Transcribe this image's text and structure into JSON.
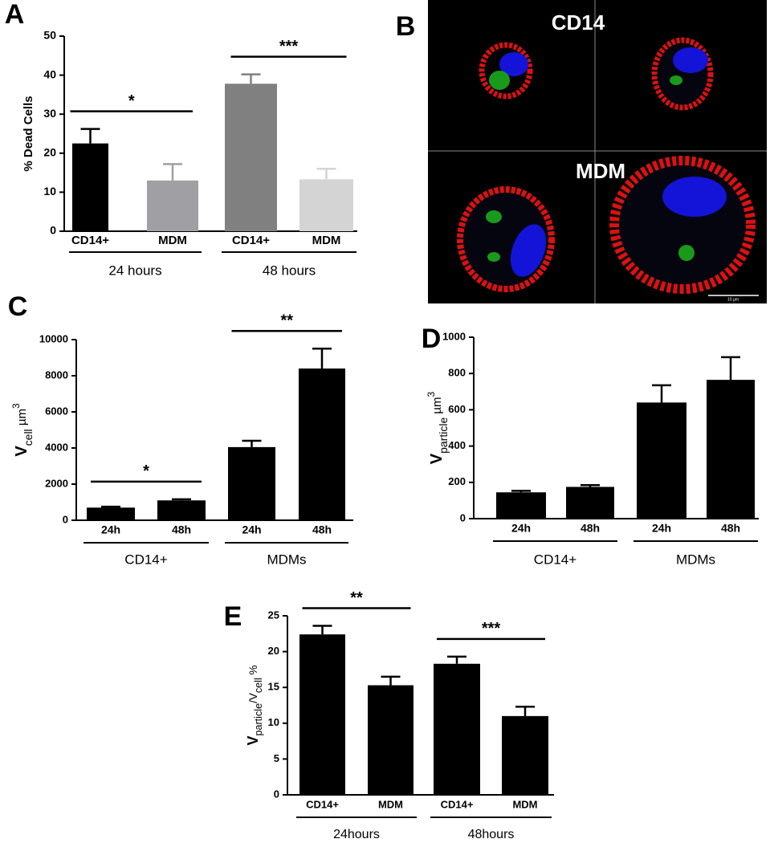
{
  "chart_data": [
    {
      "type": "bar",
      "panel": "A",
      "ylabel": [
        {
          "text": "% Dead Cells"
        }
      ],
      "categories": [
        "CD14+",
        "MDM",
        "CD14+",
        "MDM"
      ],
      "values": [
        22.5,
        13,
        37.8,
        13.3
      ],
      "errors": [
        3.7,
        4.2,
        2.4,
        2.7
      ],
      "colors": [
        "#000000",
        "#a0a0a4",
        "#808080",
        "#d4d4d4"
      ],
      "groups": [
        {
          "label": "24 hours",
          "from": 0,
          "to": 1
        },
        {
          "label": "48 hours",
          "from": 2,
          "to": 3
        }
      ],
      "annotations": [
        {
          "text": "*",
          "from": 0,
          "to": 1
        },
        {
          "text": "***",
          "from": 2,
          "to": 3
        }
      ],
      "ylim": [
        0,
        50
      ],
      "yticks": [
        0,
        10,
        20,
        30,
        40,
        50
      ]
    },
    {
      "type": "bar",
      "panel": "C",
      "ylabel": [
        {
          "text": "V"
        },
        {
          "text": "cell",
          "sub": true
        },
        {
          "text": " µm"
        },
        {
          "text": "3",
          "sup": true
        }
      ],
      "categories": [
        "24h",
        "48h",
        "24h",
        "48h"
      ],
      "values": [
        700,
        1100,
        4050,
        8400
      ],
      "errors": [
        50,
        60,
        350,
        1100
      ],
      "colors": [
        "#000000",
        "#000000",
        "#000000",
        "#000000"
      ],
      "groups": [
        {
          "label": "CD14+",
          "from": 0,
          "to": 1
        },
        {
          "label": "MDMs",
          "from": 2,
          "to": 3
        }
      ],
      "annotations": [
        {
          "text": "*",
          "from": 0,
          "to": 1
        },
        {
          "text": "**",
          "from": 2,
          "to": 3
        }
      ],
      "ylim": [
        0,
        10000
      ],
      "yticks": [
        0,
        2000,
        4000,
        6000,
        8000,
        10000
      ]
    },
    {
      "type": "bar",
      "panel": "D",
      "ylabel": [
        {
          "text": "V"
        },
        {
          "text": "particle",
          "sub": true
        },
        {
          "text": " µm"
        },
        {
          "text": "3",
          "sup": true
        }
      ],
      "categories": [
        "24h",
        "48h",
        "24h",
        "48h"
      ],
      "values": [
        145,
        175,
        640,
        765
      ],
      "errors": [
        8,
        10,
        95,
        125
      ],
      "colors": [
        "#000000",
        "#000000",
        "#000000",
        "#000000"
      ],
      "groups": [
        {
          "label": "CD14+",
          "from": 0,
          "to": 1
        },
        {
          "label": "MDMs",
          "from": 2,
          "to": 3
        }
      ],
      "annotations": [],
      "ylim": [
        0,
        1000
      ],
      "yticks": [
        0,
        200,
        400,
        600,
        800,
        1000
      ]
    },
    {
      "type": "bar",
      "panel": "E",
      "ylabel": [
        {
          "text": "V"
        },
        {
          "text": "particle",
          "sub": true
        },
        {
          "text": "/V"
        },
        {
          "text": "cell",
          "sub": true
        },
        {
          "text": " %"
        }
      ],
      "categories": [
        "CD14+",
        "MDM",
        "CD14+",
        "MDM"
      ],
      "values": [
        22.4,
        15.3,
        18.3,
        11
      ],
      "errors": [
        1.2,
        1.2,
        1.0,
        1.3
      ],
      "colors": [
        "#000000",
        "#000000",
        "#000000",
        "#000000"
      ],
      "groups": [
        {
          "label": "24hours",
          "from": 0,
          "to": 1
        },
        {
          "label": "48hours",
          "from": 2,
          "to": 3
        }
      ],
      "annotations": [
        {
          "text": "**",
          "from": 0,
          "to": 1
        },
        {
          "text": "***",
          "from": 2,
          "to": 3
        }
      ],
      "ylim": [
        0,
        25
      ],
      "yticks": [
        0,
        5,
        10,
        15,
        20,
        25
      ]
    }
  ],
  "image_panel": {
    "panel": "B",
    "labels": [
      "CD14",
      "MDM"
    ],
    "scale_bar": "10 µm"
  }
}
